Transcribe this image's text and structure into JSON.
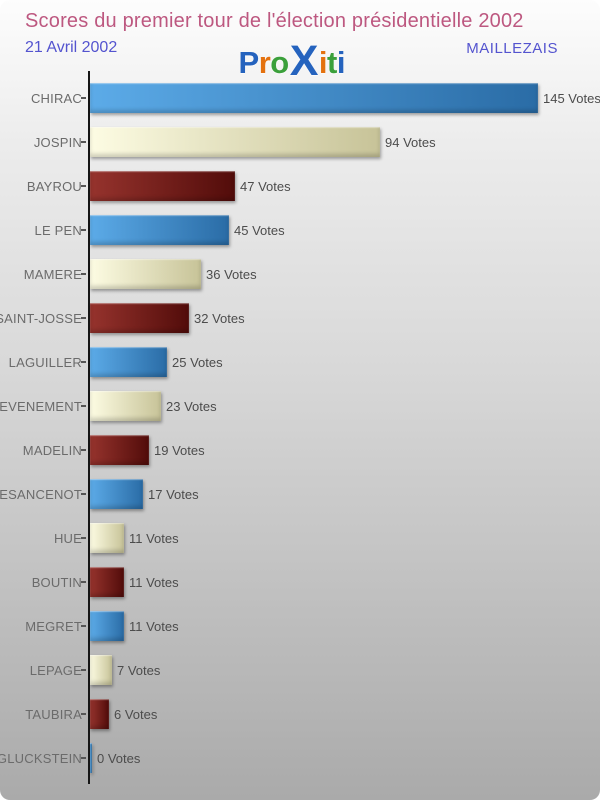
{
  "header": {
    "title": "Scores du premier tour de l'élection présidentielle 2002",
    "date": "21 Avril 2002",
    "location": "MAILLEZAIS",
    "title_color": "#bd5880",
    "subtitle_color": "#5454cf",
    "logo": {
      "name": "Proxiti",
      "letters": [
        {
          "ch": "P",
          "color": "#2563be",
          "big": false
        },
        {
          "ch": "r",
          "color": "#e4710e",
          "big": false
        },
        {
          "ch": "o",
          "color": "#3ba03b",
          "big": false
        },
        {
          "ch": "X",
          "color": "#2563be",
          "big": true
        },
        {
          "ch": "i",
          "color": "#e4710e",
          "big": false
        },
        {
          "ch": "t",
          "color": "#3ba03b",
          "big": false
        },
        {
          "ch": "i",
          "color": "#2563be",
          "big": false
        }
      ]
    }
  },
  "chart_data": {
    "type": "bar",
    "orientation": "horizontal",
    "title": "Scores du premier tour de l'élection présidentielle 2002",
    "categories": [
      "CHIRAC",
      "JOSPIN",
      "BAYROU",
      "LE PEN",
      "MAMERE",
      "SAINT-JOSSE",
      "LAGUILLER",
      "CHEVENEMENT",
      "MADELIN",
      "BESANCENOT",
      "HUE",
      "BOUTIN",
      "MEGRET",
      "LEPAGE",
      "TAUBIRA",
      "GLUCKSTEIN"
    ],
    "values": [
      145,
      94,
      47,
      45,
      36,
      32,
      25,
      23,
      19,
      17,
      11,
      11,
      11,
      7,
      6,
      0
    ],
    "value_suffix": " Votes",
    "xlim": [
      0,
      145
    ],
    "grid": false,
    "legend": false,
    "axis_color": "#161616",
    "label_color": "#6b6b6b",
    "value_color": "#4c4c4c",
    "color_cycle": [
      "blue",
      "cream",
      "maroon"
    ],
    "styles": {
      "blue": {
        "from": "#5cabe8",
        "to": "#2a6ca6"
      },
      "cream": {
        "from": "#fdfce3",
        "to": "#c7c398"
      },
      "maroon": {
        "from": "#96332d",
        "to": "#520c0a"
      }
    }
  }
}
